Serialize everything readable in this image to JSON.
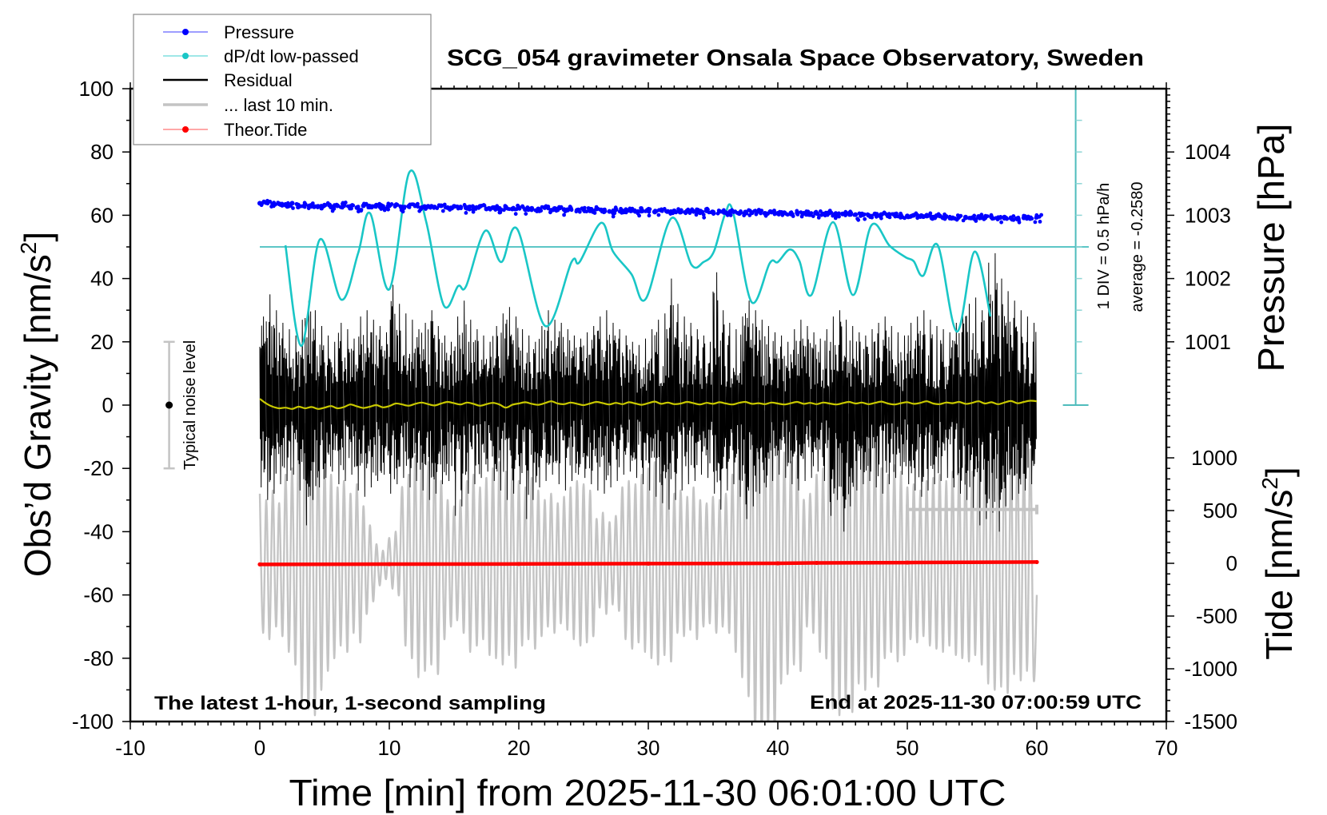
{
  "chart_data": {
    "type": "line",
    "title": "SCG_054 gravimeter Onsala Space Observatory, Sweden",
    "xlabel": "Time [min] from 2025-11-30 06:01:00 UTC",
    "ylabel": {
      "main": "Obs’d Gravity [nm/s",
      "sup": "2",
      "end": "]"
    },
    "xlim": [
      -10,
      70
    ],
    "ylim": [
      -100,
      100
    ],
    "xticks": [
      -10,
      0,
      10,
      20,
      30,
      40,
      50,
      60,
      70
    ],
    "yticks": [
      -100,
      -80,
      -60,
      -40,
      -20,
      0,
      20,
      40,
      60,
      80,
      100
    ],
    "grid": false,
    "legend_position": "top-left",
    "pressure_axis": {
      "label": "Pressure [hPa]",
      "ticks": [
        1001,
        1002,
        1003,
        1004
      ],
      "range": [
        1000,
        1005
      ]
    },
    "tide_axis": {
      "label": {
        "main": "Tide [nm/s",
        "sup": "2",
        "end": "]"
      },
      "ticks": [
        -1500,
        -1000,
        -500,
        0,
        500,
        1000
      ],
      "range": [
        -1500,
        1400
      ]
    },
    "annotations": {
      "noise_label": "Typical noise level",
      "noise_level": {
        "center": 0,
        "half_range": 20
      },
      "div_label": "1 DIV = 0.5 hPa/h",
      "average_label": "average = -0.2580",
      "bottom_left": "The latest 1-hour, 1-second sampling",
      "bottom_right": "End at 2025-11-30 07:00:59 UTC"
    },
    "legend": [
      {
        "label": "Pressure",
        "color": "#0000ff",
        "style": "line-dot"
      },
      {
        "label": "dP/dt low-passed",
        "color": "#19c6c6",
        "style": "line-dot"
      },
      {
        "label": "Residual",
        "color": "#000000",
        "style": "thick-line"
      },
      {
        "label": "... last 10 min.",
        "color": "#c4c4c4",
        "style": "thick-line"
      },
      {
        "label": "Theor.Tide",
        "color": "#ff0000",
        "style": "line-dot"
      }
    ],
    "series": {
      "pressure": {
        "name": "Pressure",
        "unit": "hPa",
        "color": "#0000ff",
        "t_start": 0,
        "t_step": 0.5,
        "values": [
          1003.19,
          1003.2,
          1003.17,
          1003.18,
          1003.16,
          1003.19,
          1003.15,
          1003.17,
          1003.16,
          1003.14,
          1003.16,
          1003.13,
          1003.15,
          1003.17,
          1003.14,
          1003.12,
          1003.15,
          1003.13,
          1003.16,
          1003.14,
          1003.15,
          1003.16,
          1003.13,
          1003.14,
          1003.15,
          1003.12,
          1003.14,
          1003.13,
          1003.15,
          1003.12,
          1003.14,
          1003.13,
          1003.11,
          1003.12,
          1003.14,
          1003.1,
          1003.12,
          1003.11,
          1003.13,
          1003.1,
          1003.12,
          1003.09,
          1003.11,
          1003.1,
          1003.12,
          1003.08,
          1003.1,
          1003.09,
          1003.11,
          1003.08,
          1003.09,
          1003.07,
          1003.1,
          1003.08,
          1003.06,
          1003.09,
          1003.07,
          1003.08,
          1003.06,
          1003.08,
          1003.07,
          1003.05,
          1003.08,
          1003.06,
          1003.07,
          1003.05,
          1003.07,
          1003.06,
          1003.04,
          1003.07,
          1003.05,
          1003.06,
          1003.04,
          1003.06,
          1003.03,
          1003.05,
          1003.04,
          1003.06,
          1003.03,
          1003.05,
          1003.03,
          1003.04,
          1003.02,
          1003.04,
          1003.03,
          1003.01,
          1003.03,
          1003.02,
          1003.04,
          1003.01,
          1003.02,
          1003.03,
          1003.01,
          1003.02,
          1003.0,
          1003.02,
          1003.01,
          1002.99,
          1003.01,
          1003.0,
          1002.99,
          1003.0,
          1002.98,
          1003.0,
          1002.97,
          1002.99,
          1002.98,
          1002.96,
          1002.98,
          1002.97,
          1002.96,
          1002.98,
          1002.96,
          1002.97,
          1002.95,
          1002.97,
          1002.96,
          1002.94,
          1002.96,
          1002.95,
          1002.97
        ]
      },
      "dpdt": {
        "name": "dP/dt low-passed",
        "unit": "hPa/h",
        "color": "#19c6c6",
        "average": -0.258,
        "div": 0.5,
        "points": [
          [
            1.98,
            -0.233
          ],
          [
            3.21,
            -1.823
          ],
          [
            4.63,
            -0.143
          ],
          [
            6.3,
            -1.093
          ],
          [
            7.59,
            -0.358
          ],
          [
            8.52,
            0.272
          ],
          [
            10.0,
            -0.928
          ],
          [
            11.54,
            0.917
          ],
          [
            12.84,
            0.147
          ],
          [
            14.2,
            -1.178
          ],
          [
            15.31,
            -0.878
          ],
          [
            15.93,
            -0.878
          ],
          [
            17.41,
            -0.003
          ],
          [
            18.64,
            -0.498
          ],
          [
            19.88,
            0.022
          ],
          [
            22.04,
            -1.508
          ],
          [
            24.07,
            -0.498
          ],
          [
            24.69,
            -0.498
          ],
          [
            26.36,
            0.122
          ],
          [
            27.28,
            -0.333
          ],
          [
            28.7,
            -0.688
          ],
          [
            29.81,
            -1.078
          ],
          [
            31.79,
            0.197
          ],
          [
            33.33,
            -0.538
          ],
          [
            34.26,
            -0.498
          ],
          [
            35.06,
            -0.333
          ],
          [
            35.93,
            0.262
          ],
          [
            36.54,
            0.297
          ],
          [
            37.96,
            -1.128
          ],
          [
            39.38,
            -0.513
          ],
          [
            40.0,
            -0.498
          ],
          [
            40.93,
            -0.298
          ],
          [
            41.67,
            -0.483
          ],
          [
            42.59,
            -1.018
          ],
          [
            44.26,
            0.132
          ],
          [
            45.8,
            -1.018
          ],
          [
            47.22,
            0.082
          ],
          [
            48.64,
            -0.243
          ],
          [
            49.88,
            -0.423
          ],
          [
            50.49,
            -0.483
          ],
          [
            51.23,
            -0.713
          ],
          [
            52.35,
            -0.233
          ],
          [
            53.83,
            -1.598
          ],
          [
            55.19,
            -0.333
          ],
          [
            56.42,
            -1.358
          ]
        ]
      },
      "residual": {
        "name": "Residual",
        "unit": "nm/s2",
        "color": "#000000",
        "t_start": 0,
        "t_step": 0.5,
        "hi": [
          28,
          35,
          30,
          26,
          24,
          22,
          27,
          33,
          30,
          25,
          22,
          20,
          26,
          24,
          21,
          28,
          30,
          27,
          25,
          23,
          38,
          32,
          29,
          27,
          24,
          26,
          30,
          25,
          22,
          20,
          28,
          33,
          27,
          24,
          22,
          20,
          25,
          29,
          31,
          28,
          24,
          22,
          20,
          25,
          30,
          27,
          26,
          24,
          22,
          21,
          23,
          25,
          28,
          30,
          26,
          24,
          22,
          20,
          19,
          21,
          24,
          27,
          29,
          40,
          32,
          28,
          26,
          24,
          22,
          20,
          42,
          30,
          26,
          24,
          28,
          33,
          30,
          27,
          25,
          23,
          22,
          20,
          24,
          27,
          25,
          23,
          21,
          24,
          28,
          30,
          27,
          25,
          23,
          22,
          24,
          26,
          28,
          25,
          23,
          22,
          26,
          28,
          30,
          27,
          25,
          24,
          23,
          26,
          29,
          32,
          34,
          30,
          45,
          48,
          40,
          36,
          33,
          30,
          28,
          26
        ],
        "lo": [
          -26,
          -30,
          -28,
          -25,
          -24,
          -22,
          -27,
          -38,
          -30,
          -26,
          -23,
          -21,
          -25,
          -24,
          -22,
          -27,
          -29,
          -26,
          -24,
          -22,
          -28,
          -25,
          -23,
          -26,
          -24,
          -27,
          -30,
          -28,
          -25,
          -24,
          -35,
          -32,
          -28,
          -25,
          -23,
          -21,
          -24,
          -27,
          -30,
          -28,
          -25,
          -36,
          -30,
          -26,
          -24,
          -22,
          -25,
          -27,
          -24,
          -22,
          -23,
          -25,
          -27,
          -28,
          -26,
          -24,
          -22,
          -21,
          -23,
          -25,
          -27,
          -29,
          -31,
          -33,
          -30,
          -27,
          -25,
          -24,
          -22,
          -23,
          -28,
          -33,
          -27,
          -25,
          -29,
          -36,
          -32,
          -28,
          -26,
          -24,
          -22,
          -23,
          -25,
          -27,
          -24,
          -23,
          -21,
          -24,
          -35,
          -30,
          -40,
          -32,
          -27,
          -25,
          -24,
          -26,
          -28,
          -25,
          -23,
          -22,
          -25,
          -27,
          -29,
          -27,
          -25,
          -24,
          -23,
          -26,
          -28,
          -30,
          -33,
          -38,
          -36,
          -34,
          -40,
          -32,
          -30,
          -28,
          -27,
          -25
        ]
      },
      "residual_smoothed": {
        "color": "#c8c800",
        "t_start": 0,
        "t_step": 0.5,
        "values": [
          2,
          0.5,
          -0.5,
          -1,
          -0.8,
          -1.2,
          -0.5,
          -1,
          -0.6,
          -1.2,
          -0.8,
          -0.3,
          -1,
          -0.6,
          0.2,
          -0.4,
          -0.9,
          -0.5,
          0,
          -0.7,
          -0.3,
          0.5,
          0.2,
          -0.2,
          0.4,
          0.8,
          0.3,
          -0.1,
          0.5,
          1,
          0.6,
          0.2,
          0.8,
          0.4,
          -0.2,
          0.3,
          0.7,
          0.2,
          -0.8,
          0.1,
          0.5,
          0.9,
          0.4,
          0.1,
          0.6,
          1.2,
          0.5,
          0.3,
          0.8,
          0.4,
          0,
          0.5,
          1,
          0.6,
          0.2,
          0.7,
          0.3,
          0.9,
          0.5,
          0.1,
          0.6,
          1.1,
          0.4,
          0.8,
          0.3,
          0.5,
          1,
          0.6,
          0.2,
          0.7,
          0.4,
          0.9,
          0.5,
          0.2,
          0.7,
          1,
          0.4,
          0.6,
          0.3,
          0.8,
          0.5,
          0.2,
          0.6,
          1,
          0.4,
          0.7,
          0.3,
          0.8,
          0.5,
          0.2,
          0.6,
          1,
          0.5,
          0.8,
          0.3,
          0.7,
          1.1,
          0.5,
          0.2,
          0.6,
          0.9,
          0.4,
          0.7,
          1.2,
          0.5,
          0.3,
          0.8,
          0.6,
          1,
          0.4,
          0.7,
          1.2,
          0.5,
          0.9,
          0.3,
          0.8,
          1.3,
          0.6,
          1,
          1.4,
          1.2
        ]
      },
      "last_10_min": {
        "name": "... last 10 min.",
        "color": "#c4c4c4",
        "window": [
          50,
          60
        ],
        "t_start": 0,
        "t_step": 0.25,
        "values": [
          -28,
          -72,
          -30,
          -74,
          -27,
          -70,
          -31,
          -73,
          -22,
          -78,
          -20,
          -82,
          -8,
          -94,
          -6,
          -96,
          -5,
          -98,
          -12,
          -90,
          -18,
          -84,
          -22,
          -80,
          -26,
          -76,
          -24,
          -78,
          -28,
          -72,
          -25,
          -75,
          -32,
          -66,
          -38,
          -62,
          -44,
          -57,
          -46,
          -55,
          -42,
          -58,
          -40,
          -60,
          -26,
          -76,
          -22,
          -80,
          -16,
          -86,
          -14,
          -84,
          -18,
          -82,
          -15,
          -85,
          -24,
          -74,
          -30,
          -70,
          -32,
          -68,
          -30,
          -72,
          -24,
          -78,
          -22,
          -76,
          -26,
          -74,
          -23,
          -79,
          -20,
          -80,
          -18,
          -82,
          -21,
          -79,
          -19,
          -83,
          -24,
          -76,
          -26,
          -74,
          -23,
          -77,
          -27,
          -73,
          -30,
          -70,
          -28,
          -72,
          -31,
          -69,
          -29,
          -71,
          -26,
          -74,
          -24,
          -76,
          -25,
          -75,
          -27,
          -73,
          -36,
          -64,
          -34,
          -66,
          -37,
          -63,
          -35,
          -65,
          -26,
          -74,
          -24,
          -77,
          -25,
          -75,
          -22,
          -78,
          -20,
          -80,
          -18,
          -82,
          -22,
          -79,
          -19,
          -81,
          -28,
          -72,
          -27,
          -73,
          -29,
          -71,
          -26,
          -74,
          -30,
          -70,
          -31,
          -69,
          -29,
          -72,
          -30,
          -70,
          -28,
          -72,
          -22,
          -78,
          -14,
          -86,
          -10,
          -92,
          0,
          -104,
          2,
          -106,
          -2,
          -102,
          0,
          -104,
          -12,
          -88,
          -15,
          -85,
          -18,
          -82,
          -16,
          -84,
          -30,
          -70,
          -28,
          -72,
          -22,
          -78,
          -20,
          -80,
          -4,
          -96,
          -2,
          -98,
          -6,
          -94,
          -3,
          -97,
          -12,
          -88,
          -10,
          -90,
          -14,
          -86,
          -11,
          -89,
          -20,
          -80,
          -22,
          -78,
          -19,
          -81,
          -21,
          -79,
          -26,
          -74,
          -25,
          -75,
          -27,
          -73,
          -24,
          -76,
          -23,
          -77,
          -22,
          -78,
          -24,
          -76,
          -21,
          -79,
          -20,
          -80,
          -19,
          -81,
          -21,
          -79,
          -18,
          -82,
          -12,
          -88,
          -10,
          -90,
          -11,
          -89,
          -9,
          -91,
          -15,
          -85,
          -13,
          -87,
          -16,
          -84,
          -14,
          -86,
          -60
        ]
      },
      "tide": {
        "name": "Theor.Tide",
        "unit": "nm/s2",
        "color": "#ff0000",
        "points": [
          [
            0,
            -10
          ],
          [
            10,
            -8
          ],
          [
            20,
            -6
          ],
          [
            30,
            -3
          ],
          [
            40,
            0
          ],
          [
            43,
            4
          ],
          [
            50,
            7
          ],
          [
            60,
            12
          ]
        ]
      }
    }
  }
}
